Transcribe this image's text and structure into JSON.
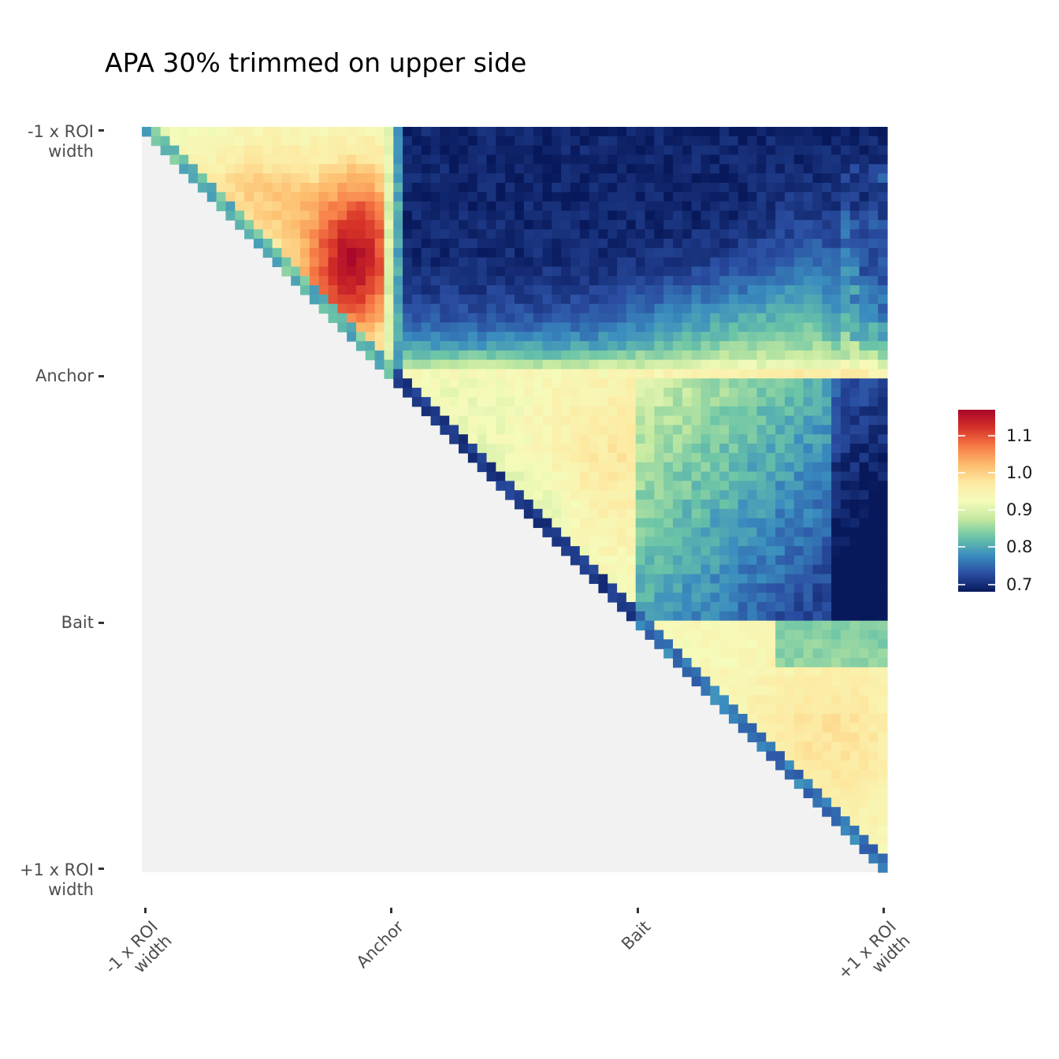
{
  "chart_data": {
    "type": "heatmap",
    "title": "APA 30% trimmed on upper side",
    "xlabel": "",
    "ylabel": "",
    "grid_size": 80,
    "x_ticks": [
      {
        "label": "-1 x ROI\nwidth",
        "pos": 0
      },
      {
        "label": "Anchor",
        "pos": 0.333
      },
      {
        "label": "Bait",
        "pos": 0.667
      },
      {
        "label": "+1 x ROI\nwidth",
        "pos": 1
      }
    ],
    "y_ticks": [
      {
        "label": "-1 x ROI\nwidth",
        "pos": 0
      },
      {
        "label": "Anchor",
        "pos": 0.333
      },
      {
        "label": "Bait",
        "pos": 0.667
      },
      {
        "label": "+1 x ROI\nwidth",
        "pos": 1
      }
    ],
    "lower_triangle": "empty",
    "legend": {
      "placement": "right",
      "min": 0.68,
      "max": 1.17,
      "ticks": [
        0.7,
        0.8,
        0.9,
        1.0,
        1.1
      ],
      "tick_labels": [
        "0.7",
        "0.8",
        "0.9",
        "1.0",
        "1.1"
      ],
      "palette": [
        "#08195b",
        "#2b4ea2",
        "#3a8dbf",
        "#6bc4a7",
        "#c4e9a0",
        "#f5fbbb",
        "#fde9a1",
        "#fdbb6b",
        "#f67a46",
        "#d63228",
        "#a8062b"
      ]
    },
    "value_pattern": {
      "anchor_anchor_block": "0.92-1.17, peak near x 0.28 y 0.20",
      "anchor_bait_block": "0.68-0.95, deep blue above anchor row",
      "bait_bait_block": "0.78-0.98",
      "diagonal": "0.72-0.85"
    }
  }
}
